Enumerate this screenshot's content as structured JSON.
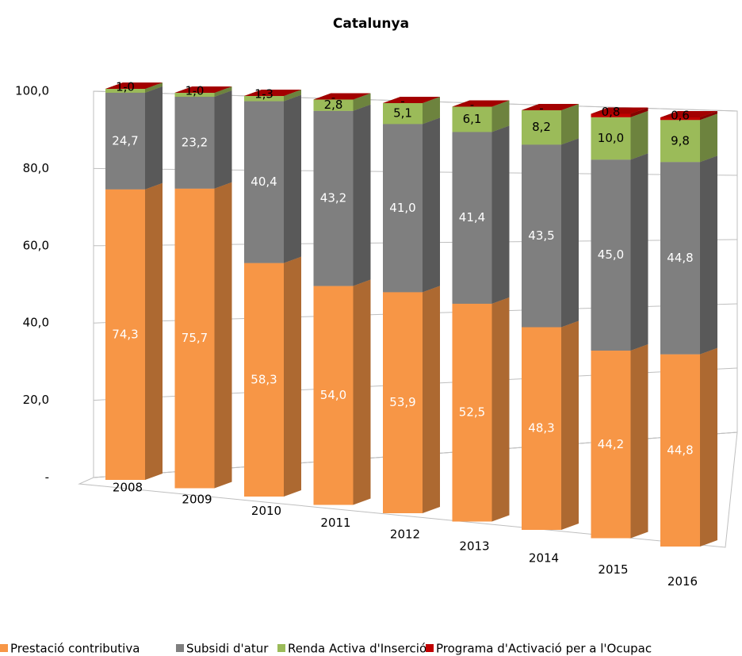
{
  "chart_data": {
    "type": "bar3d_stacked",
    "title": "Catalunya",
    "categories": [
      "2008",
      "2009",
      "2010",
      "2011",
      "2012",
      "2013",
      "2014",
      "2015",
      "2016"
    ],
    "series": [
      {
        "name": "Prestació contributiva",
        "color": "#f79646",
        "label_color": "#ffffff",
        "values": [
          74.3,
          75.7,
          58.3,
          54.0,
          53.9,
          52.5,
          48.3,
          44.2,
          44.8
        ],
        "value_labels": [
          "74,3",
          "75,7",
          "58,3",
          "54,0",
          "53,9",
          "52,5",
          "48,3",
          "44,2",
          "44,8"
        ]
      },
      {
        "name": "Subsidi d'atur",
        "color": "#7f7f7f",
        "label_color": "#ffffff",
        "values": [
          24.7,
          23.2,
          40.4,
          43.2,
          41.0,
          41.4,
          43.5,
          45.0,
          44.8
        ],
        "value_labels": [
          "24,7",
          "23,2",
          "40,4",
          "43,2",
          "41,0",
          "41,4",
          "43,5",
          "45,0",
          "44,8"
        ]
      },
      {
        "name": "Renda Activa d'Inserció",
        "color": "#9bbb59",
        "label_color": "#000000",
        "values": [
          1.0,
          1.0,
          1.3,
          2.8,
          5.1,
          6.1,
          8.2,
          10.0,
          9.8
        ],
        "value_labels": [
          "1,0",
          "1,0",
          "1,3",
          "2,8",
          "5,1",
          "6,1",
          "8,2",
          "10,0",
          "9,8"
        ]
      },
      {
        "name": "Programa d'Activació per a l'Ocupac",
        "color": "#c00000",
        "label_color": "#000000",
        "values": [
          0,
          0,
          0,
          0,
          0,
          0,
          0,
          0.8,
          0.6
        ],
        "value_labels": [
          "-",
          "-",
          "-",
          "-",
          "-",
          "-",
          "-",
          "0,8",
          "0,6"
        ]
      }
    ],
    "ylim": [
      0,
      100
    ],
    "yticks": [
      {
        "value": 0,
        "label": "-"
      },
      {
        "value": 20,
        "label": "20,0"
      },
      {
        "value": 40,
        "label": "40,0"
      },
      {
        "value": 60,
        "label": "60,0"
      },
      {
        "value": 80,
        "label": "80,0"
      },
      {
        "value": 100,
        "label": "100,0"
      }
    ],
    "grid": true,
    "legend": "bottom"
  }
}
